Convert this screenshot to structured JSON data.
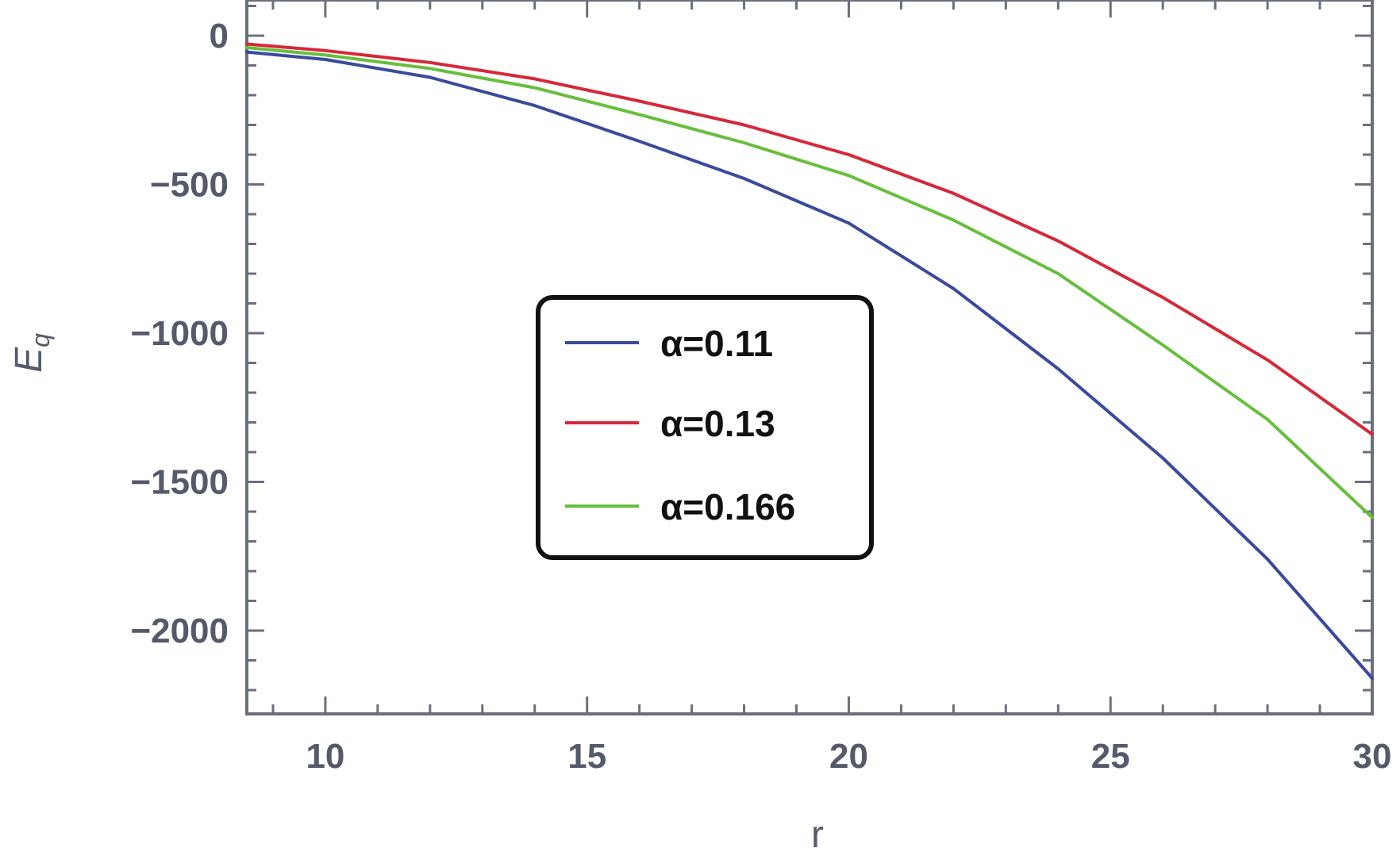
{
  "chart_data": {
    "type": "line",
    "xlabel": "r",
    "ylabel": "E_q",
    "xlim": [
      8.5,
      30
    ],
    "ylim": [
      -2280,
      120
    ],
    "x_ticks": [
      10,
      15,
      20,
      25,
      30
    ],
    "x_tick_labels": [
      "10",
      "15",
      "20",
      "25",
      "30"
    ],
    "y_ticks": [
      0,
      -500,
      -1000,
      -1500,
      -2000
    ],
    "y_tick_labels": [
      "0",
      "−500",
      "−1000",
      "−1500",
      "−2000"
    ],
    "legend_position": "center",
    "x": [
      8.5,
      10,
      12,
      14,
      16,
      18,
      20,
      22,
      24,
      26,
      28,
      30
    ],
    "series": [
      {
        "name": "α=0.11",
        "color": "#3a4a9c",
        "values": [
          -55,
          -80,
          -140,
          -235,
          -355,
          -480,
          -630,
          -850,
          -1120,
          -1420,
          -1760,
          -2160
        ]
      },
      {
        "name": "α=0.13",
        "color": "#d62838",
        "values": [
          -28,
          -50,
          -90,
          -145,
          -220,
          -300,
          -400,
          -530,
          -690,
          -880,
          -1090,
          -1340
        ]
      },
      {
        "name": "α=0.166",
        "color": "#66bf3c",
        "values": [
          -40,
          -65,
          -110,
          -175,
          -265,
          -360,
          -470,
          -620,
          -800,
          -1040,
          -1290,
          -1620
        ]
      }
    ]
  }
}
